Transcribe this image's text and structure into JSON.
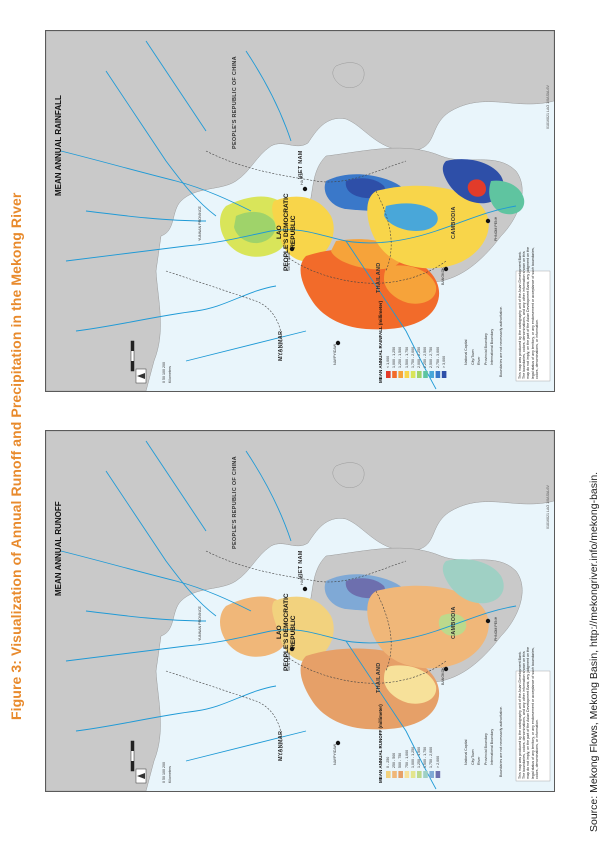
{
  "figure_title": "Figure 3: Visualization of Annual Runoff and Precipitation in the Mekong River",
  "source": "Source: Mekong Flows, Mekong Basin, http://mekongriver.info/mekong-basin.",
  "colors": {
    "title_orange": "#e88a2c",
    "land": "#c9c9c9",
    "water": "#e9f5fb",
    "river": "#1f9ad6"
  },
  "maps": [
    {
      "id": "runoff",
      "title": "MEAN ANNUAL RUNOFF",
      "legend_title": "MEAN ANNUAL RUNOFF (millimeter)",
      "legend": [
        {
          "label": "0 - 250",
          "color": "#f2d27e"
        },
        {
          "label": "250 - 500",
          "color": "#f0b779"
        },
        {
          "label": "500 - 750",
          "color": "#e6a068"
        },
        {
          "label": "750 - 1,000",
          "color": "#f7e19a"
        },
        {
          "label": "1,000 - 1,250",
          "color": "#e3e58d"
        },
        {
          "label": "1,250 - 1,500",
          "color": "#bcd98c"
        },
        {
          "label": "1,500 - 1,750",
          "color": "#9fd0c4"
        },
        {
          "label": "1,750 - 2,000",
          "color": "#7fa9d6"
        },
        {
          "label": "> 2,000",
          "color": "#6d6fae"
        }
      ],
      "code": "01816821 LAO 1/0ASIA-6V",
      "labels": {
        "country_china": "PEOPLE'S REPUBLIC OF CHINA",
        "yunnan": "YUNNAN PROVINCE",
        "lao": "LAO\nPEOPLE'S DEMOCRATIC\nREPUBLIC",
        "vietnam": "VIET NAM",
        "thailand": "THAILAND",
        "cambodia": "CAMBODIA",
        "myanmar": "MYANMAR",
        "hanoi": "HANOI",
        "vientiane": "VIENTIANE",
        "bangkok": "BANGKOK",
        "phnom_penh": "PHNOM PENH",
        "naypyidaw": "NAYPYIDAW"
      }
    },
    {
      "id": "rainfall",
      "title": "MEAN ANNUAL RAINFALL",
      "legend_title": "MEAN ANNUAL RAINFALL (millimeter)",
      "legend": [
        {
          "label": "< 1,000",
          "color": "#e23b2a"
        },
        {
          "label": "1,000 - 1,250",
          "color": "#f26b2a"
        },
        {
          "label": "1,250 - 1,500",
          "color": "#f6a33a"
        },
        {
          "label": "1,500 - 1,750",
          "color": "#f8d54a"
        },
        {
          "label": "1,750 - 2,000",
          "color": "#d9e55a"
        },
        {
          "label": "2,000 - 2,250",
          "color": "#9fd36a"
        },
        {
          "label": "2,250 - 2,500",
          "color": "#5fc4a0"
        },
        {
          "label": "2,500 - 2,750",
          "color": "#49a7d9"
        },
        {
          "label": "2,750 - 3,000",
          "color": "#3a78c9"
        },
        {
          "label": "> 3,000",
          "color": "#2e4fa8"
        }
      ],
      "code": "01816821 LAO 1/0ASIA-6V",
      "labels": {
        "country_china": "PEOPLE'S REPUBLIC OF CHINA",
        "yunnan": "YUNNAN PROVINCE",
        "lao": "LAO\nPEOPLE'S DEMOCRATIC\nREPUBLIC",
        "vietnam": "VIET NAM",
        "thailand": "THAILAND",
        "cambodia": "CAMBODIA",
        "myanmar": "MYANMAR",
        "hanoi": "HA NOI",
        "vientiane": "VIENTIANE",
        "bangkok": "BANGKOK",
        "phnom_penh": "PHNOM PENH",
        "naypyidaw": "NAYPYIDAW"
      }
    }
  ],
  "map_legend_common": {
    "items": [
      "National Capital",
      "City/Town",
      "River",
      "Provincial Boundary",
      "International Boundary"
    ],
    "note": "Boundaries are not necessarily authoritative.",
    "scale_label": "0   50  100   200",
    "scale_unit": "Kilometers",
    "disclaimer": "This map was produced by the cartography unit of the Asian Development Bank.\nThe boundaries, colors, denominations, and any other information shown on this\nmap do not imply, on the part of the Asian Development Bank, any judgment on the\nlegal status of any territory, or any endorsement or acceptance of such boundaries,\ncolors, denominations, or information."
  }
}
